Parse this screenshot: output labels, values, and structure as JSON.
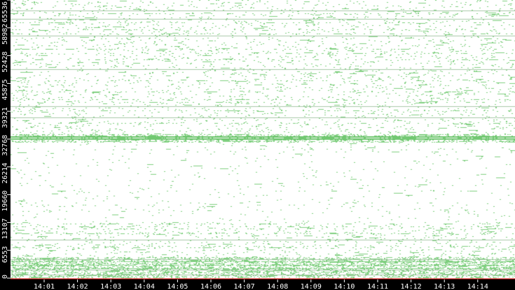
{
  "chart_data": {
    "type": "scatter",
    "title": "",
    "xlabel": "",
    "ylabel": "",
    "ylim": [
      0,
      65536
    ],
    "y_ticks": [
      "0",
      "6553",
      "13107",
      "19660",
      "26214",
      "32768",
      "39321",
      "45875",
      "52428",
      "58982",
      "65536"
    ],
    "x_ticks": [
      "14:01",
      "14:02",
      "14:03",
      "14:04",
      "14:05",
      "14:06",
      "14:07",
      "14:08",
      "14:09",
      "14:10",
      "14:11",
      "14:12",
      "14:13",
      "14:14"
    ],
    "grid": false,
    "point_color": "#7fcf7f",
    "baseline_color": "#e00000",
    "prominent_horizontal_lines": [
      63000,
      61090,
      57200,
      49234,
      40520,
      37890,
      33430,
      32900,
      9056,
      4500,
      2000,
      900
    ],
    "density_bands": [
      {
        "from": 0,
        "to": 5000,
        "density": "very high"
      },
      {
        "from": 5000,
        "to": 13107,
        "density": "medium"
      },
      {
        "from": 13107,
        "to": 32000,
        "density": "low"
      },
      {
        "from": 32000,
        "to": 34000,
        "density": "very high"
      },
      {
        "from": 34000,
        "to": 65536,
        "density": "medium"
      }
    ]
  }
}
